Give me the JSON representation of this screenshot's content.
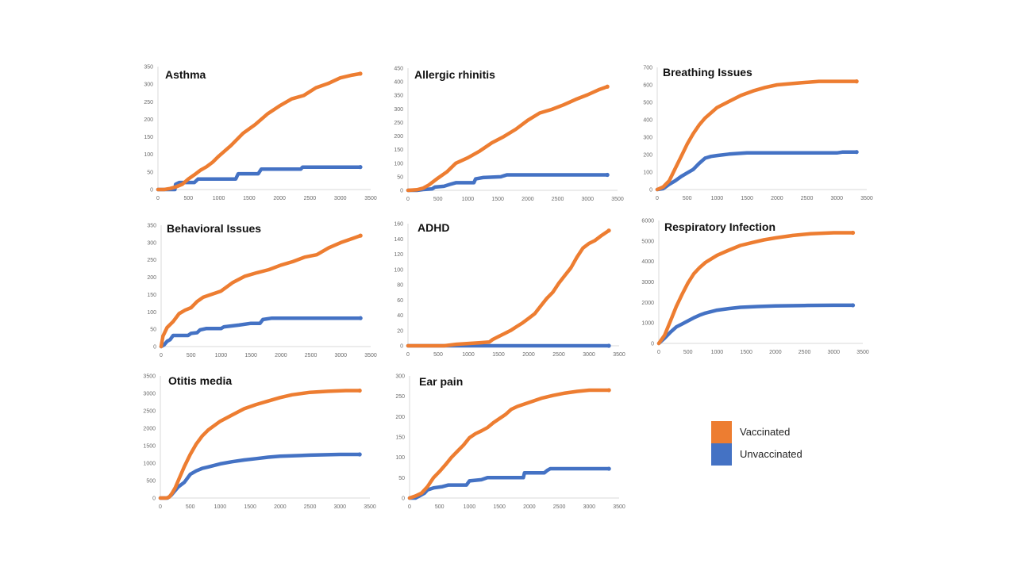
{
  "colors": {
    "vaccinated": "#ED7D31",
    "unvaccinated": "#4472C4",
    "axis": "#d9d9d9"
  },
  "legend": {
    "items": [
      {
        "label": "Vaccinated",
        "color": "#ED7D31"
      },
      {
        "label": "Unvaccinated",
        "color": "#4472C4"
      }
    ]
  },
  "chart_data": [
    {
      "type": "line",
      "title": "Asthma",
      "xlim": [
        0,
        3500
      ],
      "xticks": [
        0,
        500,
        1000,
        1500,
        2000,
        2500,
        3000,
        3500
      ],
      "ylim": [
        0,
        350
      ],
      "yticks": [
        0,
        50,
        100,
        150,
        200,
        250,
        300,
        350
      ],
      "series": [
        {
          "name": "Vaccinated",
          "x": [
            0,
            100,
            200,
            300,
            400,
            500,
            600,
            700,
            800,
            900,
            1000,
            1200,
            1400,
            1600,
            1800,
            2000,
            2200,
            2400,
            2600,
            2800,
            3000,
            3200,
            3330
          ],
          "y": [
            0,
            0,
            3,
            8,
            15,
            30,
            42,
            55,
            65,
            78,
            95,
            125,
            160,
            185,
            215,
            238,
            258,
            268,
            290,
            302,
            318,
            326,
            330
          ]
        },
        {
          "name": "Unvaccinated",
          "x": [
            0,
            280,
            290,
            350,
            600,
            660,
            1280,
            1320,
            1650,
            1700,
            2350,
            2380,
            3330
          ],
          "y": [
            0,
            0,
            15,
            20,
            20,
            30,
            30,
            45,
            45,
            58,
            58,
            64,
            64
          ]
        }
      ]
    },
    {
      "type": "line",
      "title": "Allergic rhinitis",
      "xlim": [
        0,
        3500
      ],
      "xticks": [
        0,
        500,
        1000,
        1500,
        2000,
        2500,
        3000,
        3500
      ],
      "ylim": [
        0,
        450
      ],
      "yticks": [
        0,
        50,
        100,
        150,
        200,
        250,
        300,
        350,
        400,
        450
      ],
      "series": [
        {
          "name": "Vaccinated",
          "x": [
            0,
            150,
            250,
            350,
            500,
            650,
            800,
            1000,
            1200,
            1400,
            1600,
            1800,
            2000,
            2200,
            2400,
            2600,
            2800,
            3000,
            3200,
            3330
          ],
          "y": [
            0,
            2,
            8,
            20,
            45,
            68,
            100,
            120,
            145,
            175,
            198,
            225,
            258,
            285,
            298,
            315,
            335,
            352,
            372,
            382
          ]
        },
        {
          "name": "Unvaccinated",
          "x": [
            0,
            150,
            250,
            400,
            450,
            600,
            700,
            800,
            1100,
            1130,
            1250,
            1550,
            1650,
            3330
          ],
          "y": [
            0,
            0,
            3,
            5,
            12,
            15,
            22,
            28,
            28,
            42,
            47,
            50,
            57,
            57
          ]
        }
      ]
    },
    {
      "type": "line",
      "title": "Breathing Issues",
      "xlim": [
        0,
        3500
      ],
      "xticks": [
        0,
        500,
        1000,
        1500,
        2000,
        2500,
        3000,
        3500
      ],
      "ylim": [
        0,
        700
      ],
      "yticks": [
        0,
        100,
        200,
        300,
        400,
        500,
        600,
        700
      ],
      "series": [
        {
          "name": "Vaccinated",
          "x": [
            0,
            100,
            200,
            300,
            400,
            500,
            600,
            700,
            800,
            900,
            1000,
            1200,
            1400,
            1600,
            1800,
            2000,
            2400,
            2700,
            3330
          ],
          "y": [
            0,
            15,
            50,
            120,
            190,
            260,
            320,
            370,
            410,
            440,
            470,
            505,
            540,
            565,
            585,
            600,
            612,
            620,
            620
          ]
        },
        {
          "name": "Unvaccinated",
          "x": [
            0,
            100,
            200,
            300,
            400,
            500,
            600,
            700,
            800,
            900,
            1000,
            1200,
            1500,
            2000,
            3000,
            3100,
            3330
          ],
          "y": [
            0,
            5,
            30,
            50,
            75,
            95,
            115,
            150,
            180,
            190,
            195,
            203,
            210,
            210,
            210,
            215,
            215
          ]
        }
      ]
    },
    {
      "type": "line",
      "title": "Behavioral Issues",
      "xlim": [
        0,
        3500
      ],
      "xticks": [
        0,
        500,
        1000,
        1500,
        2000,
        2500,
        3000,
        3500
      ],
      "ylim": [
        0,
        350
      ],
      "yticks": [
        0,
        50,
        100,
        150,
        200,
        250,
        300,
        350
      ],
      "series": [
        {
          "name": "Vaccinated",
          "x": [
            0,
            30,
            100,
            200,
            300,
            400,
            500,
            600,
            700,
            800,
            1000,
            1200,
            1400,
            1600,
            1800,
            2000,
            2200,
            2400,
            2600,
            2800,
            3000,
            3200,
            3330
          ],
          "y": [
            0,
            30,
            55,
            72,
            95,
            105,
            112,
            130,
            142,
            148,
            160,
            185,
            203,
            213,
            222,
            235,
            245,
            258,
            265,
            285,
            300,
            312,
            320
          ]
        },
        {
          "name": "Unvaccinated",
          "x": [
            0,
            50,
            100,
            150,
            200,
            450,
            500,
            600,
            650,
            750,
            1000,
            1050,
            1300,
            1500,
            1650,
            1700,
            1850,
            3330
          ],
          "y": [
            0,
            5,
            15,
            20,
            32,
            32,
            38,
            40,
            48,
            52,
            52,
            57,
            62,
            67,
            67,
            78,
            82,
            82
          ]
        }
      ]
    },
    {
      "type": "line",
      "title": "ADHD",
      "xlim": [
        0,
        3500
      ],
      "xticks": [
        0,
        500,
        1000,
        1500,
        2000,
        2500,
        3000,
        3500
      ],
      "ylim": [
        0,
        160
      ],
      "yticks": [
        0,
        20,
        40,
        60,
        80,
        100,
        120,
        140,
        160
      ],
      "series": [
        {
          "name": "Vaccinated",
          "x": [
            0,
            600,
            800,
            1000,
            1200,
            1350,
            1400,
            1500,
            1600,
            1700,
            1800,
            1900,
            2000,
            2100,
            2200,
            2300,
            2400,
            2500,
            2600,
            2700,
            2800,
            2900,
            3000,
            3100,
            3200,
            3330
          ],
          "y": [
            0,
            0,
            2,
            3,
            4,
            5,
            8,
            12,
            16,
            20,
            25,
            30,
            36,
            42,
            52,
            62,
            70,
            82,
            92,
            102,
            116,
            128,
            134,
            138,
            144,
            151
          ]
        },
        {
          "name": "Unvaccinated",
          "x": [
            0,
            3330
          ],
          "y": [
            0,
            0
          ]
        }
      ]
    },
    {
      "type": "line",
      "title": "Respiratory Infection",
      "xlim": [
        0,
        3500
      ],
      "xticks": [
        0,
        500,
        1000,
        1500,
        2000,
        2500,
        3000,
        3500
      ],
      "ylim": [
        0,
        6000
      ],
      "yticks": [
        0,
        1000,
        2000,
        3000,
        4000,
        5000,
        6000
      ],
      "series": [
        {
          "name": "Vaccinated",
          "x": [
            0,
            100,
            200,
            300,
            400,
            500,
            600,
            700,
            800,
            1000,
            1200,
            1400,
            1600,
            1800,
            2000,
            2300,
            2600,
            3000,
            3330
          ],
          "y": [
            0,
            400,
            1100,
            1800,
            2400,
            2950,
            3400,
            3700,
            3950,
            4300,
            4550,
            4780,
            4920,
            5050,
            5150,
            5270,
            5350,
            5400,
            5400
          ]
        },
        {
          "name": "Unvaccinated",
          "x": [
            0,
            100,
            200,
            300,
            400,
            500,
            600,
            700,
            800,
            1000,
            1200,
            1400,
            1700,
            2000,
            2500,
            3000,
            3330
          ],
          "y": [
            0,
            250,
            550,
            800,
            950,
            1100,
            1250,
            1380,
            1480,
            1620,
            1700,
            1760,
            1800,
            1830,
            1850,
            1860,
            1860
          ]
        }
      ]
    },
    {
      "type": "line",
      "title": "Otitis media",
      "xlim": [
        0,
        3500
      ],
      "xticks": [
        0,
        500,
        1000,
        1500,
        2000,
        2500,
        3000,
        3500
      ],
      "ylim": [
        0,
        3500
      ],
      "yticks": [
        0,
        500,
        1000,
        1500,
        2000,
        2500,
        3000,
        3500
      ],
      "series": [
        {
          "name": "Vaccinated",
          "x": [
            0,
            100,
            150,
            200,
            250,
            300,
            400,
            500,
            600,
            700,
            800,
            1000,
            1200,
            1400,
            1600,
            1800,
            2000,
            2200,
            2500,
            2800,
            3100,
            3330
          ],
          "y": [
            0,
            0,
            30,
            150,
            300,
            500,
            900,
            1250,
            1550,
            1780,
            1950,
            2200,
            2380,
            2560,
            2680,
            2780,
            2880,
            2960,
            3030,
            3060,
            3080,
            3080
          ]
        },
        {
          "name": "Unvaccinated",
          "x": [
            0,
            120,
            180,
            250,
            300,
            400,
            500,
            600,
            700,
            800,
            1000,
            1200,
            1400,
            1600,
            1800,
            2000,
            2500,
            3000,
            3330
          ],
          "y": [
            0,
            0,
            80,
            220,
            320,
            450,
            680,
            780,
            850,
            890,
            980,
            1040,
            1090,
            1130,
            1170,
            1200,
            1230,
            1250,
            1250
          ]
        }
      ]
    },
    {
      "type": "line",
      "title": "Ear pain",
      "xlim": [
        0,
        3500
      ],
      "xticks": [
        0,
        500,
        1000,
        1500,
        2000,
        2500,
        3000,
        3500
      ],
      "ylim": [
        0,
        300
      ],
      "yticks": [
        0,
        50,
        100,
        150,
        200,
        250,
        300
      ],
      "series": [
        {
          "name": "Vaccinated",
          "x": [
            0,
            100,
            200,
            300,
            400,
            500,
            600,
            700,
            800,
            900,
            1000,
            1100,
            1200,
            1300,
            1400,
            1500,
            1600,
            1700,
            1800,
            2000,
            2200,
            2400,
            2600,
            2800,
            3000,
            3330
          ],
          "y": [
            0,
            5,
            12,
            28,
            50,
            65,
            82,
            100,
            115,
            130,
            148,
            158,
            165,
            173,
            185,
            195,
            205,
            218,
            225,
            235,
            245,
            252,
            258,
            262,
            265,
            265
          ]
        },
        {
          "name": "Unvaccinated",
          "x": [
            0,
            100,
            200,
            250,
            300,
            400,
            550,
            650,
            950,
            1000,
            1200,
            1300,
            1900,
            1920,
            2250,
            2300,
            2350,
            3330
          ],
          "y": [
            0,
            0,
            8,
            12,
            20,
            25,
            28,
            32,
            32,
            42,
            45,
            50,
            50,
            62,
            62,
            68,
            72,
            72
          ]
        }
      ]
    }
  ]
}
